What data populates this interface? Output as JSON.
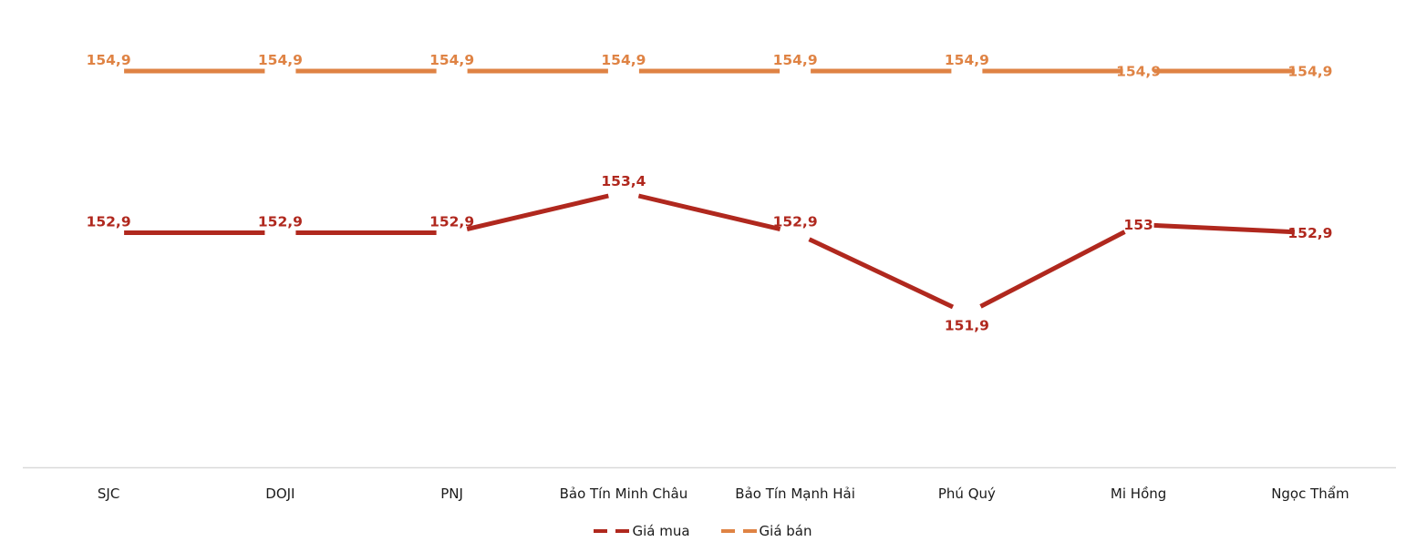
{
  "chart_data": {
    "type": "line",
    "title": "",
    "xlabel": "",
    "ylabel": "",
    "categories": [
      "SJC",
      "DOJI",
      "PNJ",
      "Bảo Tín Minh Châu",
      "Bảo Tín Mạnh Hải",
      "Phú Quý",
      "Mi Hồng",
      "Ngọc Thẩm"
    ],
    "series": [
      {
        "name": "Giá mua",
        "color": "#B0281E",
        "values": [
          152.9,
          152.9,
          152.9,
          153.4,
          152.9,
          151.9,
          153,
          152.9
        ],
        "labels": [
          "152,9",
          "152,9",
          "152,9",
          "153,4",
          "152,9",
          "151,9",
          "153",
          "152,9"
        ],
        "label_positions": [
          "above",
          "above",
          "above",
          "above",
          "above",
          "below",
          "inline",
          "inline"
        ]
      },
      {
        "name": "Giá bán",
        "color": "#DF8344",
        "values": [
          154.9,
          154.9,
          154.9,
          154.9,
          154.9,
          154.9,
          154.9,
          154.9
        ],
        "labels": [
          "154,9",
          "154,9",
          "154,9",
          "154,9",
          "154,9",
          "154,9",
          "154,9",
          "154,9"
        ],
        "label_positions": [
          "above",
          "above",
          "above",
          "above",
          "above",
          "above",
          "inline",
          "inline"
        ]
      }
    ],
    "ylim": [
      151.4,
      155.5
    ],
    "decimal_separator": ",",
    "grid": false,
    "line_style": "dashed-segments",
    "data_labels": true,
    "axis": {
      "x_axis_color": "#D9D9D9",
      "label_color": "#1a1a1a"
    },
    "legend": {
      "position": "bottom",
      "entries": [
        "Giá mua",
        "Giá bán"
      ]
    }
  }
}
